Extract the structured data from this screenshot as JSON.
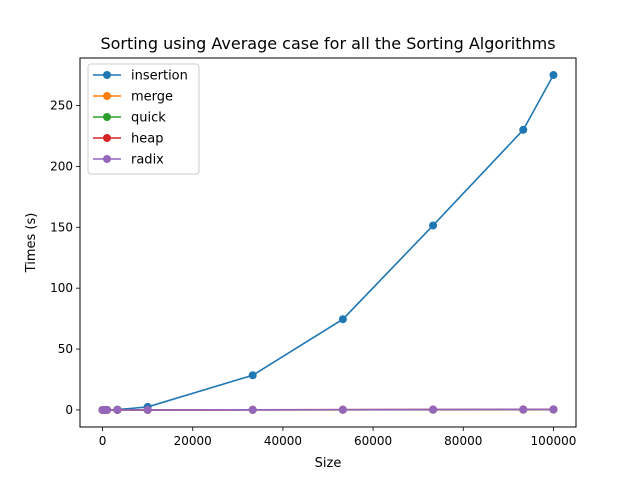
{
  "chart_data": {
    "type": "line",
    "title": "Sorting using Average case for all the Sorting Algorithms",
    "xlabel": "Size",
    "ylabel": "Times (s)",
    "xlim": [
      -5000,
      105000
    ],
    "ylim": [
      -14,
      289
    ],
    "xticks": [
      0,
      20000,
      40000,
      60000,
      80000,
      100000
    ],
    "yticks": [
      0,
      50,
      100,
      150,
      200,
      250
    ],
    "grid": false,
    "legend_position": "upper-left",
    "x": [
      10,
      100,
      500,
      1000,
      3300,
      10000,
      33300,
      53300,
      73300,
      93300,
      100000
    ],
    "series": [
      {
        "name": "insertion",
        "color": "#1f77b4",
        "values": [
          0,
          0,
          0,
          0.03,
          0.3,
          2.5,
          28.5,
          74.5,
          151.5,
          230,
          275
        ]
      },
      {
        "name": "merge",
        "color": "#ff7f0e",
        "values": [
          0,
          0,
          0,
          0,
          0.01,
          0.03,
          0.1,
          0.15,
          0.2,
          0.25,
          0.3
        ]
      },
      {
        "name": "quick",
        "color": "#2ca02c",
        "values": [
          0,
          0,
          0,
          0,
          0.01,
          0.02,
          0.06,
          0.1,
          0.15,
          0.2,
          0.22
        ]
      },
      {
        "name": "heap",
        "color": "#d62728",
        "values": [
          0,
          0,
          0,
          0,
          0.01,
          0.04,
          0.15,
          0.25,
          0.35,
          0.45,
          0.5
        ]
      },
      {
        "name": "radix",
        "color": "#9467bd",
        "values": [
          0,
          0,
          0,
          0,
          0.01,
          0.03,
          0.12,
          0.2,
          0.3,
          0.4,
          0.45
        ]
      }
    ]
  }
}
